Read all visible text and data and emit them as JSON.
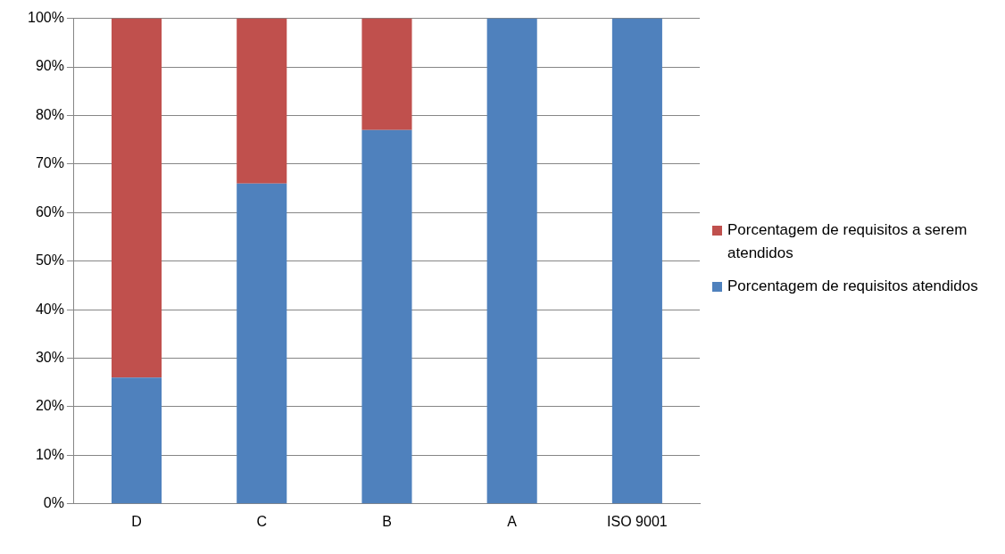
{
  "chart_data": {
    "type": "bar",
    "stacked": true,
    "categories": [
      "D",
      "C",
      "B",
      "A",
      "ISO 9001"
    ],
    "series": [
      {
        "name": "Porcentagem de requisitos atendidos",
        "color": "#4f81bd",
        "values": [
          26,
          66,
          77,
          100,
          100
        ]
      },
      {
        "name": "Porcentagem de requisitos a serem atendidos",
        "color": "#c0504d",
        "values": [
          74,
          34,
          23,
          0,
          0
        ]
      }
    ],
    "ylim": [
      0,
      100
    ],
    "yticks": [
      {
        "value": 0,
        "label": "0%"
      },
      {
        "value": 10,
        "label": "10%"
      },
      {
        "value": 20,
        "label": "20%"
      },
      {
        "value": 30,
        "label": "30%"
      },
      {
        "value": 40,
        "label": "40%"
      },
      {
        "value": 50,
        "label": "50%"
      },
      {
        "value": 60,
        "label": "60%"
      },
      {
        "value": 70,
        "label": "70%"
      },
      {
        "value": 80,
        "label": "80%"
      },
      {
        "value": 90,
        "label": "90%"
      },
      {
        "value": 100,
        "label": "100%"
      }
    ],
    "grid": "y",
    "legend": "right"
  }
}
